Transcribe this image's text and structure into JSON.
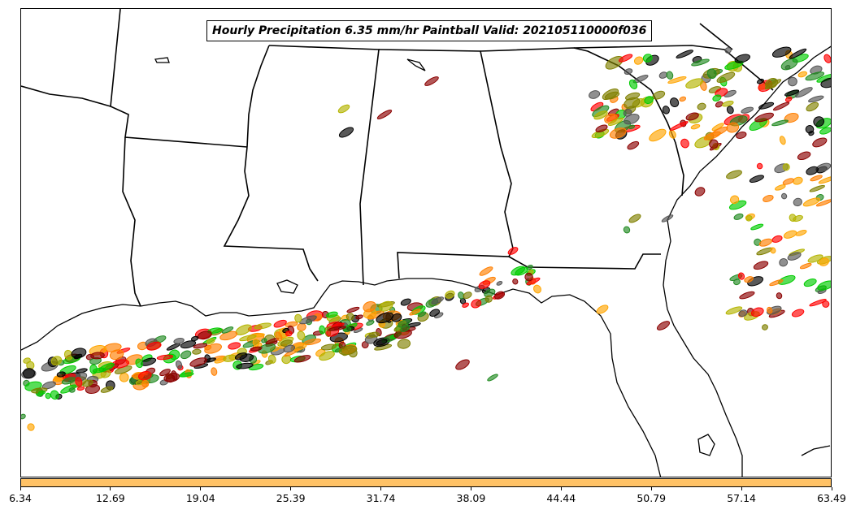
{
  "title": "Hourly Precipitation 6.35 mm/hr Paintball Valid: 202105110000f036",
  "colorbar": {
    "color": "#ffc266",
    "ticks": [
      "6.34",
      "12.69",
      "19.04",
      "25.39",
      "31.74",
      "38.09",
      "44.44",
      "50.79",
      "57.14",
      "63.49"
    ]
  },
  "member_colors": [
    "#00cc00",
    "#228b22",
    "#ff0000",
    "#8b0000",
    "#ff7f00",
    "#ffa500",
    "#b4b400",
    "#808000",
    "#000000",
    "#555555"
  ]
}
